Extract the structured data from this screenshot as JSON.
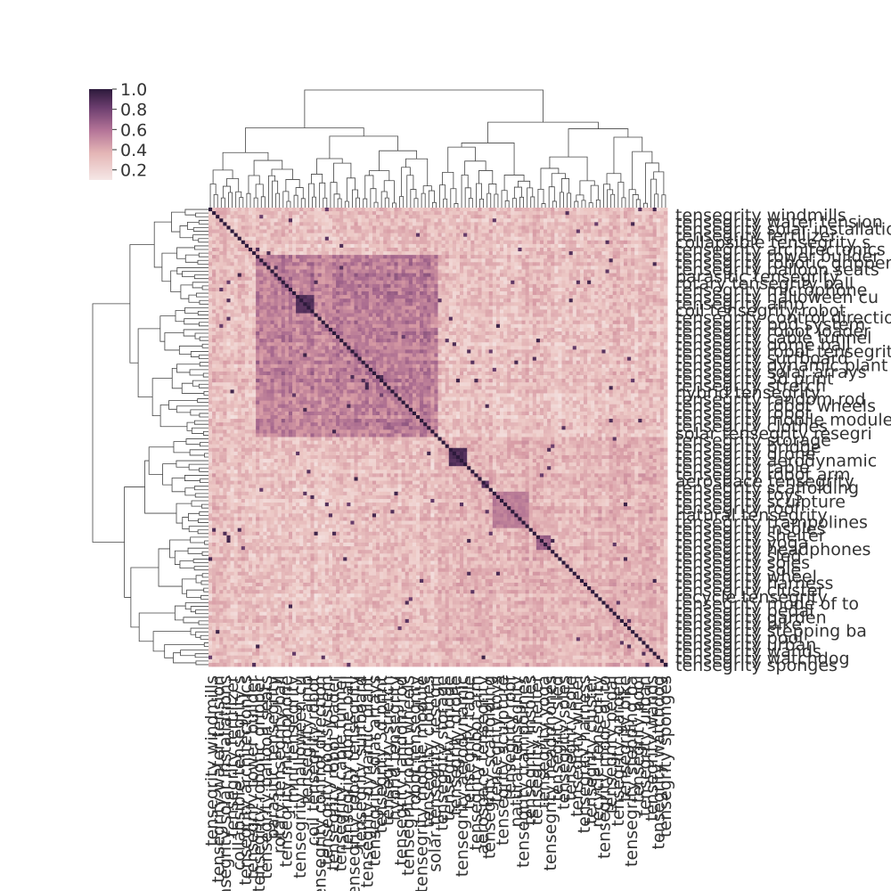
{
  "chart_data": {
    "type": "heatmap",
    "title": "",
    "xlabel": "",
    "ylabel": "",
    "colorbar": {
      "ticks": [
        "1.0",
        "0.8",
        "0.6",
        "0.4",
        "0.2"
      ],
      "range": [
        0.1,
        1.0
      ],
      "colors": {
        "low": "#f5e7e6",
        "mid": "#b37397",
        "high": "#2d1a3c"
      }
    },
    "dendrogram_top": true,
    "dendrogram_left": true,
    "n_rows": 126,
    "n_cols": 126,
    "visible_row_labels": [
      "tensegrity windmills",
      "tensegrity water tension",
      "tensegrity solar installations",
      "tensegrity fertilizer",
      "collapsible tensegrity s",
      "tensegrity architectonics",
      "tensegrity tower builder",
      "tensegrity robotic gripper",
      "tensegrity balloon seats",
      "parasitic tensegrity",
      "rotary tensegrity ball",
      "tensegrity microphone",
      "tensegrity halloween cu",
      "tensegrity amp",
      "coil tensegrity robot",
      "tensegrity control direction",
      "tensegrity pod system",
      "tensegrity robot loader",
      "tensegrity cable tunnel",
      "tensegrity dome ball",
      "tensegrity robot tensegrity",
      "tensegrity surfboard",
      "tensegrity dynamic plant",
      "tensegrity solar arrays",
      "tensegrity 3d print",
      "tensegrity stretch",
      "hybrid tensegrity",
      "tensegrity random rod",
      "tensegrity robot wheels",
      "tensegrity robot",
      "tensegrity mobile module",
      "tensegrity clothes",
      "solar tensegrity resegri",
      "tensegrity storage",
      "tensegrity bridge",
      "tensegrity drone",
      "tensegrity aerodynamic",
      "tensegrity table",
      "tensegrity robot arm",
      "aerospace tensegrity",
      "tensegrity scaffolding",
      "tensegrity toys",
      "tensegrity sculpture",
      "tensegrity roof",
      "natural tensegrity",
      "tensegrity trampolines",
      "tensegrity insoles",
      "tensegrity shelter",
      "tensegrity yoga",
      "tensegrity headphones",
      "tensegrity sled",
      "tensegrity soles",
      "tensegrity sole",
      "tensegrity wheel",
      "tensegrity harness",
      "tensegrity cluster",
      "recycle tensegrity",
      "tensegrity mode of to",
      "tensegrity pedal",
      "tensegrity garden",
      "tensegrity bike",
      "tensegrity stepping ba",
      "tensegrity pool",
      "tensegrity urban",
      "tensegrity wands",
      "tensegrity watchdog",
      "tensegrity sponges"
    ],
    "visible_col_labels": [
      "tensegrity windmills",
      "tensegrity water tension",
      "tensegrity solar installations",
      "tensegrity fertilizer",
      "collapsible tensegrity s",
      "tensegrity architectonics",
      "tensegrity tower builder",
      "tensegrity robotic gripper",
      "tensegrity balloon seats",
      "parasitic tensegrity",
      "rotary tensegrity ball",
      "tensegrity microphone",
      "mini tensegrity",
      "tensegrity halloween cu",
      "tensegrity amp",
      "coil tensegrity robot",
      "tensegrity control direction",
      "tensegrity pod system",
      "tensegrity robot loader",
      "tensegrity cable tunnel",
      "tensegrity dome ball",
      "tensegrity robot tensegrity",
      "tensegrity surfboard",
      "tensegrity dynamic plant",
      "tensegrity solar arrays",
      "tensegrity 3d print",
      "tensegrity stretch",
      "hybrid tensegrity",
      "tensegrity random rod",
      "tensegrity robot wheels",
      "robot tensegrity",
      "tensegrity mobile module",
      "tensegrity clothes",
      "solar tensegrity resegri",
      "tensegrity storage",
      "tensegrity bridge",
      "tensegrity drone",
      "tensegrity aerodynamic",
      "tensegrity table",
      "tensegrity robot arm",
      "aerospace tensegrity",
      "tensegrity scaffolding",
      "tensegrity toys",
      "tensegrity sculpture",
      "tensegrity roof",
      "natural tensegrity",
      "tensegrity trampolines",
      "tensegrity insoles",
      "tensegrity shelter",
      "tensegrity yoga",
      "tensegrity headphones",
      "tensegrity sled",
      "tensegrity soles",
      "tensegrity sole",
      "tensegrity wheel",
      "tensegrity harness",
      "tensegrity cluster",
      "recycle tensegrity",
      "tensegrity mode of to",
      "tensegrity pedal",
      "tensegrity garden",
      "tensegrity bike",
      "tensegrity stepping ba",
      "tensegrity pool",
      "tensegrity urban",
      "tensegrity wands",
      "tensegrity watchdog",
      "tensegrity sponges"
    ],
    "clusters": [
      {
        "start": 13,
        "end": 62,
        "mean": 0.55
      },
      {
        "start": 63,
        "end": 125,
        "mean": 0.35
      }
    ],
    "strong_blocks": [
      {
        "start": 24,
        "end": 28,
        "value": 0.92
      },
      {
        "start": 66,
        "end": 70,
        "value": 0.92
      },
      {
        "start": 75,
        "end": 76,
        "value": 0.85
      },
      {
        "start": 78,
        "end": 87,
        "value": 0.6
      },
      {
        "start": 90,
        "end": 93,
        "value": 0.7
      }
    ],
    "diagonal_value": 1.0
  }
}
